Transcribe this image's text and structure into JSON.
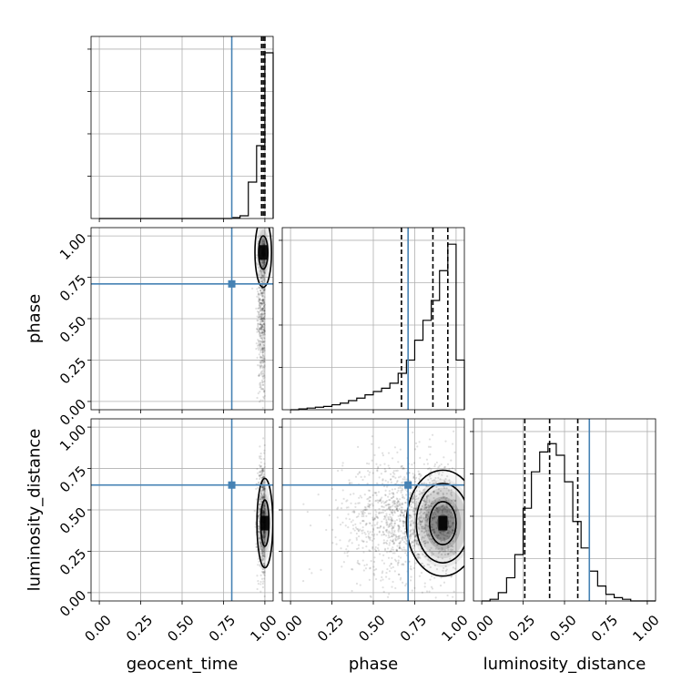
{
  "chart_data": {
    "type": "corner",
    "parameters": [
      "geocent_time",
      "phase",
      "luminosity_distance"
    ],
    "axis_labels": {
      "x": [
        "geocent_time",
        "phase",
        "luminosity_distance"
      ],
      "y": [
        "phase",
        "luminosity_distance"
      ]
    },
    "range": [
      -0.05,
      1.05
    ],
    "ticks": [
      0.0,
      0.25,
      0.5,
      0.75,
      1.0
    ],
    "tick_labels": [
      "0.00",
      "0.25",
      "0.50",
      "0.75",
      "1.00"
    ],
    "truths": {
      "geocent_time": 0.8,
      "phase": 0.71,
      "luminosity_distance": 0.65
    },
    "grid": true,
    "colors": {
      "truth": "#4682b4",
      "hist": "#000000",
      "grid": "#b0b0b0"
    },
    "marginals": [
      {
        "parameter": "geocent_time",
        "bin_edges": [
          0.0,
          0.05,
          0.1,
          0.15,
          0.2,
          0.25,
          0.3,
          0.35,
          0.4,
          0.45,
          0.5,
          0.55,
          0.6,
          0.65,
          0.7,
          0.75,
          0.8,
          0.85,
          0.9,
          0.95,
          1.0,
          1.05
        ],
        "counts": [
          0,
          0,
          0,
          0,
          0,
          0,
          0,
          0,
          0,
          0,
          0,
          0,
          0,
          0,
          0,
          0,
          0.5,
          1.5,
          20,
          40,
          91
        ],
        "ymax": 100,
        "quantiles": [
          0.98,
          0.99,
          1.0
        ]
      },
      {
        "parameter": "phase",
        "bin_edges": [
          0.0,
          0.05,
          0.1,
          0.15,
          0.2,
          0.25,
          0.3,
          0.35,
          0.4,
          0.45,
          0.5,
          0.55,
          0.6,
          0.65,
          0.7,
          0.75,
          0.8,
          0.85,
          0.9,
          0.95,
          1.0,
          1.05
        ],
        "counts": [
          0,
          0.5,
          1,
          1.5,
          2,
          3,
          4,
          5.5,
          7,
          9,
          11,
          13,
          16,
          22,
          30,
          42,
          54,
          66,
          84,
          100,
          30
        ],
        "ymax": 110,
        "quantiles": [
          0.67,
          0.86,
          0.95
        ]
      },
      {
        "parameter": "luminosity_distance",
        "bin_edges": [
          0.0,
          0.05,
          0.1,
          0.15,
          0.2,
          0.25,
          0.3,
          0.35,
          0.4,
          0.45,
          0.5,
          0.55,
          0.6,
          0.65,
          0.7,
          0.75,
          0.8,
          0.85,
          0.9,
          0.95,
          1.0,
          1.05
        ],
        "counts": [
          0,
          1,
          5,
          14,
          28,
          56,
          78,
          90,
          95,
          88,
          72,
          48,
          32,
          18,
          9,
          4,
          2,
          1,
          0,
          0,
          0
        ],
        "ymax": 110,
        "quantiles": [
          0.26,
          0.41,
          0.58
        ]
      }
    ],
    "joint": [
      {
        "x": "geocent_time",
        "y": "phase",
        "center": [
          0.99,
          0.9
        ],
        "contours": [
          {
            "rx": 0.028,
            "ry": 0.1
          },
          {
            "rx": 0.05,
            "ry": 0.21
          }
        ],
        "points": {
          "mean": [
            0.985,
            0.55
          ],
          "sd": [
            0.015,
            0.28
          ],
          "n": 600
        }
      },
      {
        "x": "geocent_time",
        "y": "luminosity_distance",
        "center": [
          1.0,
          0.42
        ],
        "contours": [
          {
            "rx": 0.025,
            "ry": 0.14
          },
          {
            "rx": 0.048,
            "ry": 0.27
          }
        ],
        "points": {
          "mean": [
            0.985,
            0.45
          ],
          "sd": [
            0.015,
            0.18
          ],
          "n": 600
        }
      },
      {
        "x": "phase",
        "y": "luminosity_distance",
        "center": [
          0.92,
          0.42
        ],
        "contours": [
          {
            "rx": 0.08,
            "ry": 0.13
          },
          {
            "rx": 0.16,
            "ry": 0.24
          },
          {
            "rx": 0.22,
            "ry": 0.32
          }
        ],
        "points": {
          "mean": [
            0.72,
            0.45
          ],
          "sd": [
            0.2,
            0.18
          ],
          "n": 1500
        }
      }
    ]
  }
}
